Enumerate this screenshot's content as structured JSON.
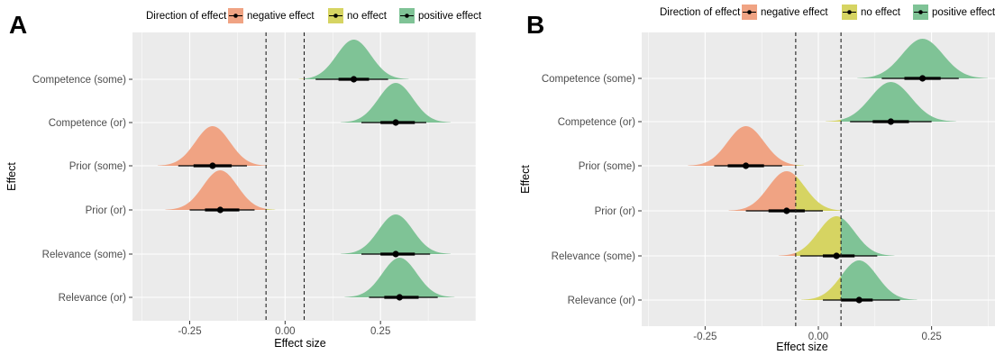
{
  "colors": {
    "panel_bg": "#ebebeb",
    "grid": "#ffffff",
    "negative": "#f0a383",
    "none": "#d6d462",
    "positive": "#7fc396",
    "point": "#000000",
    "axis_text": "#4d4d4d"
  },
  "chart_data": [
    {
      "panel": "A",
      "type": "halfeye",
      "xlabel": "Effect size",
      "ylabel": "Effect",
      "xlim": [
        -0.4,
        0.5
      ],
      "x_ticks": [
        -0.25,
        0.0,
        0.25
      ],
      "x_tick_labels": [
        "-0.25",
        "0.00",
        "0.25"
      ],
      "reference_lines": [
        -0.05,
        0.05
      ],
      "legend": {
        "title": "Direction of effect",
        "position": "top",
        "entries": [
          {
            "label": "negative effect",
            "color": "#f0a383"
          },
          {
            "label": "no effect",
            "color": "#d6d462"
          },
          {
            "label": "positive effect",
            "color": "#7fc396"
          }
        ]
      },
      "grid": true,
      "categories": [
        "Competence (some)",
        "Competence (or)",
        "Prior (some)",
        "Prior (or)",
        "Relevance (some)",
        "Relevance (or)"
      ],
      "series": [
        {
          "effect": "Competence (some)",
          "median": 0.18,
          "sd": 0.045,
          "ci66": [
            0.14,
            0.22
          ],
          "ci95": [
            0.08,
            0.27
          ]
        },
        {
          "effect": "Competence (or)",
          "median": 0.29,
          "sd": 0.045,
          "ci66": [
            0.25,
            0.34
          ],
          "ci95": [
            0.2,
            0.37
          ]
        },
        {
          "effect": "Prior (some)",
          "median": -0.19,
          "sd": 0.045,
          "ci66": [
            -0.24,
            -0.14
          ],
          "ci95": [
            -0.28,
            -0.1
          ]
        },
        {
          "effect": "Prior (or)",
          "median": -0.17,
          "sd": 0.045,
          "ci66": [
            -0.21,
            -0.12
          ],
          "ci95": [
            -0.25,
            -0.08
          ]
        },
        {
          "effect": "Relevance (some)",
          "median": 0.29,
          "sd": 0.045,
          "ci66": [
            0.25,
            0.34
          ],
          "ci95": [
            0.2,
            0.38
          ]
        },
        {
          "effect": "Relevance (or)",
          "median": 0.3,
          "sd": 0.045,
          "ci66": [
            0.26,
            0.35
          ],
          "ci95": [
            0.22,
            0.4
          ]
        }
      ]
    },
    {
      "panel": "B",
      "type": "halfeye",
      "xlabel": "Effect size",
      "ylabel": "Effect",
      "xlim": [
        -0.39,
        0.39
      ],
      "x_ticks": [
        -0.25,
        0.0,
        0.25
      ],
      "x_tick_labels": [
        "-0.25",
        "0.00",
        "0.25"
      ],
      "reference_lines": [
        -0.05,
        0.05
      ],
      "legend": {
        "title": "Direction of effect",
        "position": "top",
        "entries": [
          {
            "label": "negative effect",
            "color": "#f0a383"
          },
          {
            "label": "no effect",
            "color": "#d6d462"
          },
          {
            "label": "positive effect",
            "color": "#7fc396"
          }
        ]
      },
      "grid": true,
      "categories": [
        "Competence (some)",
        "Competence (or)",
        "Prior (some)",
        "Prior (or)",
        "Relevance (some)",
        "Relevance (or)"
      ],
      "series": [
        {
          "effect": "Competence (some)",
          "median": 0.23,
          "sd": 0.045,
          "ci66": [
            0.19,
            0.27
          ],
          "ci95": [
            0.14,
            0.31
          ]
        },
        {
          "effect": "Competence (or)",
          "median": 0.16,
          "sd": 0.045,
          "ci66": [
            0.12,
            0.2
          ],
          "ci95": [
            0.07,
            0.25
          ]
        },
        {
          "effect": "Prior (some)",
          "median": -0.16,
          "sd": 0.04,
          "ci66": [
            -0.2,
            -0.12
          ],
          "ci95": [
            -0.23,
            -0.08
          ]
        },
        {
          "effect": "Prior (or)",
          "median": -0.07,
          "sd": 0.04,
          "ci66": [
            -0.11,
            -0.03
          ],
          "ci95": [
            -0.16,
            0.01
          ]
        },
        {
          "effect": "Relevance (some)",
          "median": 0.04,
          "sd": 0.04,
          "ci66": [
            0.01,
            0.08
          ],
          "ci95": [
            -0.04,
            0.13
          ]
        },
        {
          "effect": "Relevance (or)",
          "median": 0.09,
          "sd": 0.04,
          "ci66": [
            0.05,
            0.12
          ],
          "ci95": [
            0.01,
            0.18
          ]
        }
      ]
    }
  ]
}
